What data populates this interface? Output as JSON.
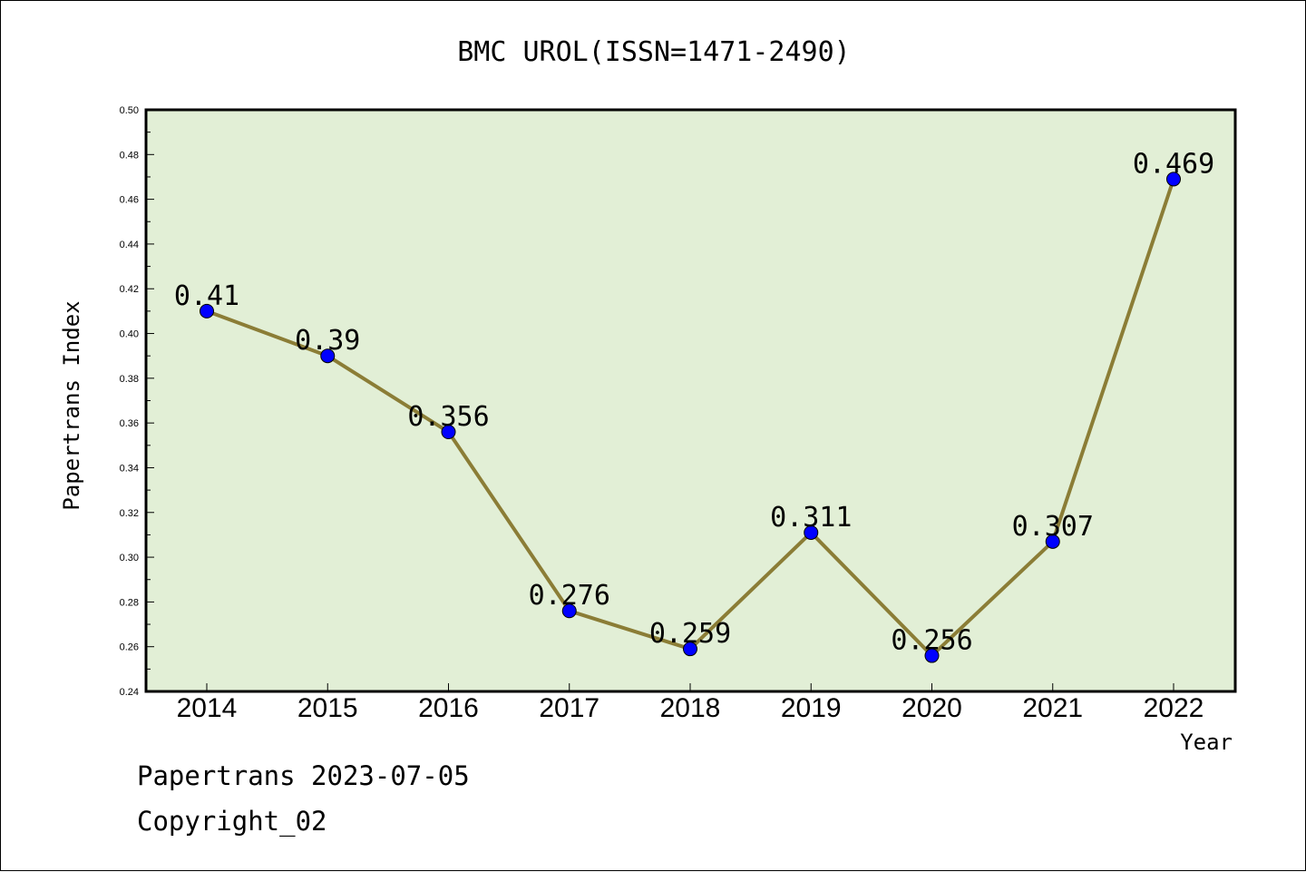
{
  "chart_data": {
    "type": "line",
    "title": "BMC UROL(ISSN=1471-2490)",
    "xlabel": "Year",
    "ylabel": "Papertrans Index",
    "categories": [
      "2014",
      "2015",
      "2016",
      "2017",
      "2018",
      "2019",
      "2020",
      "2021",
      "2022"
    ],
    "series": [
      {
        "values": [
          0.41,
          0.39,
          0.356,
          0.276,
          0.259,
          0.311,
          0.256,
          0.307,
          0.469
        ],
        "labels": [
          "0.41",
          "0.39",
          "0.356",
          "0.276",
          "0.259",
          "0.311",
          "0.256",
          "0.307",
          "0.469"
        ]
      }
    ],
    "ylim": [
      0.24,
      0.5
    ],
    "yticks": [
      "0.24",
      "0.26",
      "0.28",
      "0.30",
      "0.32",
      "0.34",
      "0.36",
      "0.38",
      "0.40",
      "0.42",
      "0.44",
      "0.46",
      "0.48",
      "0.50"
    ],
    "grid": false,
    "colors": {
      "plot_background": "#e2efd6",
      "line": "#8b7d36",
      "marker": "#0000ff"
    }
  },
  "footer": {
    "line1": "Papertrans 2023-07-05",
    "line2": "Copyright_02"
  }
}
